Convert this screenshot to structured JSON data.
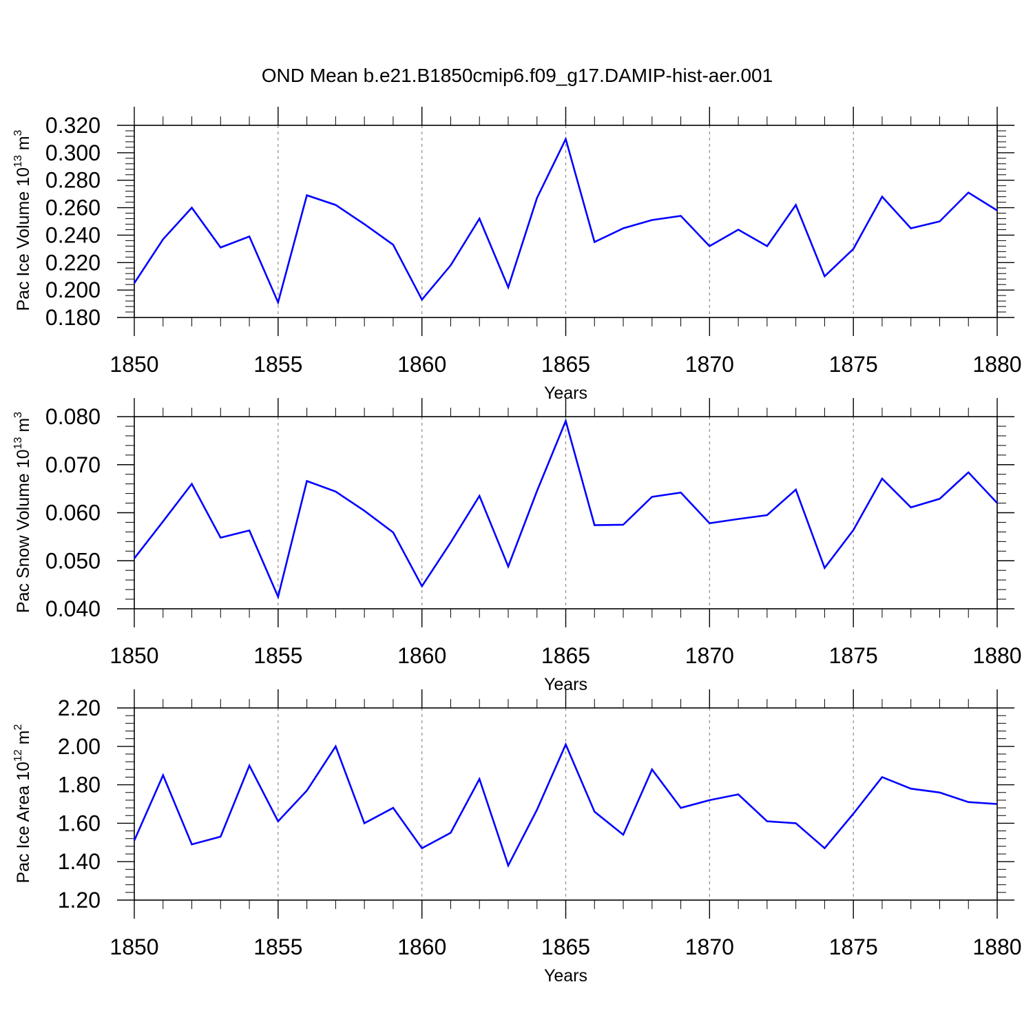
{
  "title": "OND Mean b.e21.B1850cmip6.f09_g17.DAMIP-hist-aer.001",
  "chart_data": [
    {
      "type": "line",
      "ylabel": "Pac Ice Volume 10",
      "ylabel_exp": "13",
      "ylabel_unit": "m",
      "ylabel_unit_exp": "3",
      "xlabel": "Years",
      "xlim": [
        1850,
        1880
      ],
      "ylim": [
        0.18,
        0.32
      ],
      "x_ticks": [
        "1850",
        "1855",
        "1860",
        "1865",
        "1870",
        "1875",
        "1880"
      ],
      "y_ticks": [
        "0.180",
        "0.200",
        "0.220",
        "0.240",
        "0.260",
        "0.280",
        "0.300",
        "0.320"
      ],
      "grid": "vertical dashed at major x ticks",
      "line_color": "#0000ff",
      "x": [
        1850,
        1851,
        1852,
        1853,
        1854,
        1855,
        1856,
        1857,
        1858,
        1859,
        1860,
        1861,
        1862,
        1863,
        1864,
        1865,
        1866,
        1867,
        1868,
        1869,
        1870,
        1871,
        1872,
        1873,
        1874,
        1875,
        1876,
        1877,
        1878,
        1879,
        1880
      ],
      "y": [
        0.205,
        0.237,
        0.26,
        0.231,
        0.239,
        0.191,
        0.269,
        0.262,
        0.248,
        0.233,
        0.193,
        0.218,
        0.252,
        0.202,
        0.267,
        0.31,
        0.235,
        0.245,
        0.251,
        0.254,
        0.232,
        0.244,
        0.232,
        0.262,
        0.21,
        0.23,
        0.268,
        0.245,
        0.25,
        0.271,
        0.258
      ]
    },
    {
      "type": "line",
      "ylabel": "Pac Snow Volume 10",
      "ylabel_exp": "13",
      "ylabel_unit": "m",
      "ylabel_unit_exp": "3",
      "xlabel": "Years",
      "xlim": [
        1850,
        1880
      ],
      "ylim": [
        0.04,
        0.08
      ],
      "x_ticks": [
        "1850",
        "1855",
        "1860",
        "1865",
        "1870",
        "1875",
        "1880"
      ],
      "y_ticks": [
        "0.040",
        "0.050",
        "0.060",
        "0.070",
        "0.080"
      ],
      "grid": "vertical dashed at major x ticks",
      "line_color": "#0000ff",
      "x": [
        1850,
        1851,
        1852,
        1853,
        1854,
        1855,
        1856,
        1857,
        1858,
        1859,
        1860,
        1861,
        1862,
        1863,
        1864,
        1865,
        1866,
        1867,
        1868,
        1869,
        1870,
        1871,
        1872,
        1873,
        1874,
        1875,
        1876,
        1877,
        1878,
        1879,
        1880
      ],
      "y": [
        0.0505,
        0.0582,
        0.066,
        0.0548,
        0.0563,
        0.0425,
        0.0666,
        0.0644,
        0.0604,
        0.0559,
        0.0447,
        0.0538,
        0.0635,
        0.0488,
        0.0645,
        0.0791,
        0.0574,
        0.0575,
        0.0633,
        0.0642,
        0.0578,
        0.0587,
        0.0595,
        0.0648,
        0.0485,
        0.0564,
        0.0671,
        0.0611,
        0.0629,
        0.0684,
        0.062
      ]
    },
    {
      "type": "line",
      "ylabel": "Pac Ice Area 10",
      "ylabel_exp": "12",
      "ylabel_unit": "m",
      "ylabel_unit_exp": "2",
      "xlabel": "Years",
      "xlim": [
        1850,
        1880
      ],
      "ylim": [
        1.2,
        2.2
      ],
      "x_ticks": [
        "1850",
        "1855",
        "1860",
        "1865",
        "1870",
        "1875",
        "1880"
      ],
      "y_ticks": [
        "1.20",
        "1.40",
        "1.60",
        "1.80",
        "2.00",
        "2.20"
      ],
      "grid": "vertical dashed at major x ticks",
      "line_color": "#0000ff",
      "x": [
        1850,
        1851,
        1852,
        1853,
        1854,
        1855,
        1856,
        1857,
        1858,
        1859,
        1860,
        1861,
        1862,
        1863,
        1864,
        1865,
        1866,
        1867,
        1868,
        1869,
        1870,
        1871,
        1872,
        1873,
        1874,
        1875,
        1876,
        1877,
        1878,
        1879,
        1880
      ],
      "y": [
        1.51,
        1.85,
        1.49,
        1.53,
        1.9,
        1.61,
        1.77,
        2.0,
        1.6,
        1.68,
        1.47,
        1.55,
        1.83,
        1.38,
        1.67,
        2.01,
        1.66,
        1.54,
        1.88,
        1.68,
        1.72,
        1.75,
        1.61,
        1.6,
        1.47,
        1.65,
        1.84,
        1.78,
        1.76,
        1.71,
        1.7
      ]
    }
  ]
}
